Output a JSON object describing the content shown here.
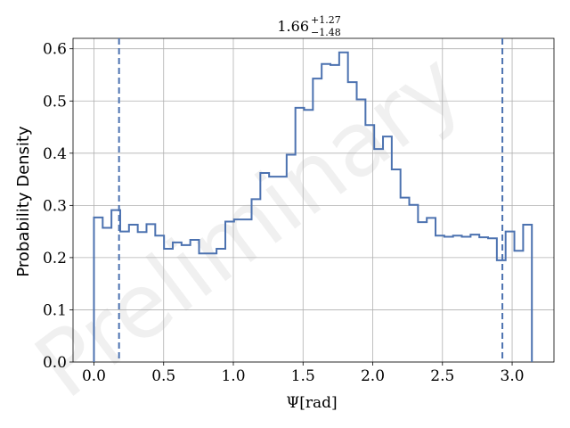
{
  "chart_data": {
    "type": "histogram-step",
    "title": {
      "value": "1.66",
      "upper": "+1.27",
      "lower": "−1.48"
    },
    "xlabel": "Ψ[rad]",
    "ylabel": "Probability Density",
    "xlim": [
      -0.15,
      3.3
    ],
    "ylim": [
      0.0,
      0.62
    ],
    "xticks": [
      0.0,
      0.5,
      1.0,
      1.5,
      2.0,
      2.5,
      3.0
    ],
    "xtick_labels": [
      "0.0",
      "0.5",
      "1.0",
      "1.5",
      "2.0",
      "2.5",
      "3.0"
    ],
    "yticks": [
      0.0,
      0.1,
      0.2,
      0.3,
      0.4,
      0.5,
      0.6
    ],
    "ytick_labels": [
      "0.0",
      "0.1",
      "0.2",
      "0.3",
      "0.4",
      "0.5",
      "0.6"
    ],
    "grid": true,
    "color": "#4c72b0",
    "bin_edges": [
      0.0,
      0.0628,
      0.1257,
      0.1885,
      0.2513,
      0.3142,
      0.377,
      0.4398,
      0.5027,
      0.5655,
      0.6283,
      0.6912,
      0.754,
      0.8168,
      0.8796,
      0.9425,
      1.0053,
      1.0681,
      1.131,
      1.1938,
      1.2566,
      1.3195,
      1.3823,
      1.4451,
      1.508,
      1.5708,
      1.6336,
      1.6965,
      1.7593,
      1.8221,
      1.885,
      1.9478,
      2.0106,
      2.0735,
      2.1363,
      2.1991,
      2.2619,
      2.3248,
      2.3876,
      2.4504,
      2.5133,
      2.5761,
      2.6389,
      2.7018,
      2.7646,
      2.8274,
      2.8903,
      2.9531,
      3.0159,
      3.0788,
      3.1416
    ],
    "density": [
      0.277,
      0.257,
      0.291,
      0.25,
      0.263,
      0.249,
      0.264,
      0.242,
      0.217,
      0.229,
      0.224,
      0.234,
      0.208,
      0.208,
      0.217,
      0.269,
      0.273,
      0.273,
      0.312,
      0.362,
      0.355,
      0.355,
      0.397,
      0.487,
      0.483,
      0.543,
      0.571,
      0.569,
      0.593,
      0.536,
      0.503,
      0.454,
      0.408,
      0.432,
      0.369,
      0.315,
      0.301,
      0.268,
      0.276,
      0.242,
      0.24,
      0.242,
      0.24,
      0.244,
      0.239,
      0.237,
      0.195,
      0.25,
      0.213,
      0.263
    ],
    "vlines": [
      0.18,
      2.93
    ],
    "watermark": "Preliminary"
  }
}
